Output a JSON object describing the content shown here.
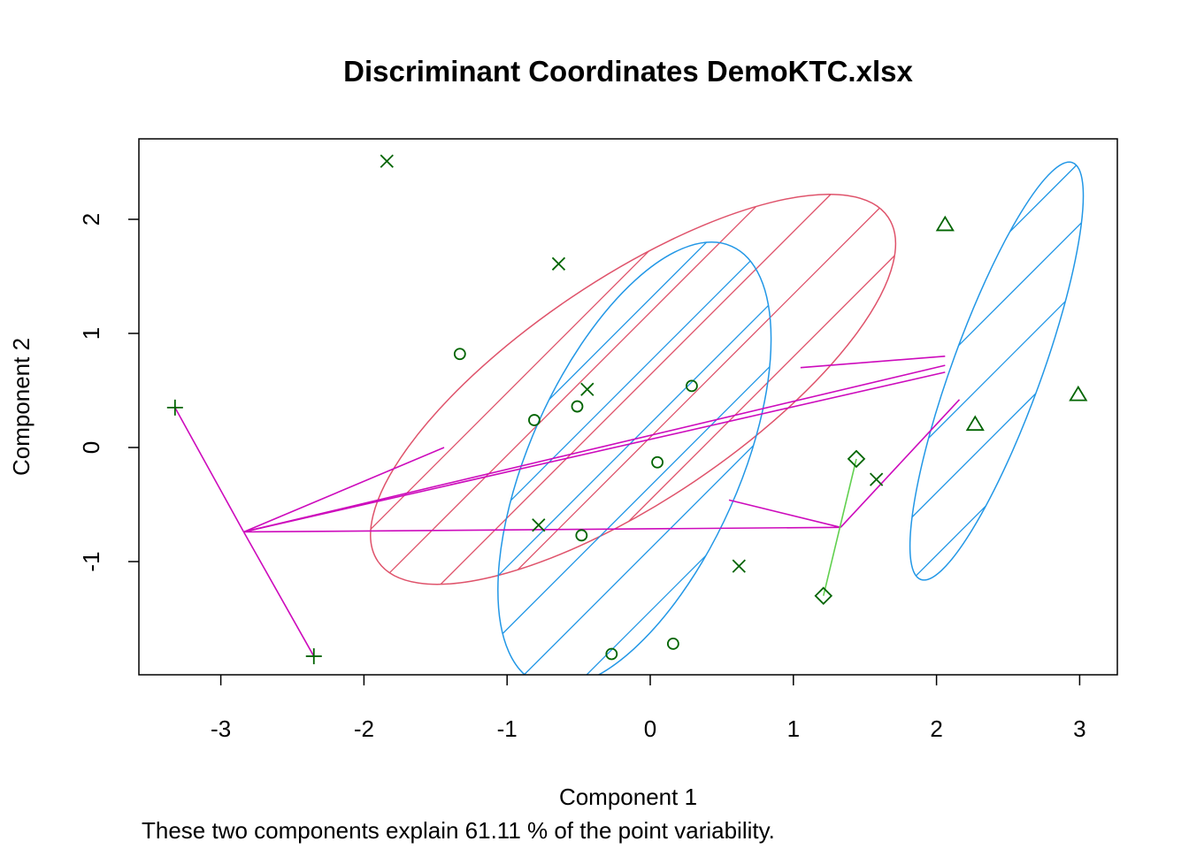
{
  "chart_data": {
    "type": "scatter",
    "title": "Discriminant Coordinates DemoKTC.xlsx",
    "xlabel": "Component 1",
    "ylabel": "Component 2",
    "note": "These two components explain 61.11 % of the point variability.",
    "xlim": [
      -3.6,
      3.3
    ],
    "ylim": [
      -2.0,
      2.7
    ],
    "x_ticks": [
      -3,
      -2,
      -1,
      0,
      1,
      2,
      3
    ],
    "y_ticks": [
      -1,
      0,
      1,
      2
    ],
    "grid": false,
    "colors": {
      "points": "#006400",
      "ellipse_red": "#DF536B",
      "ellipse_blue": "#2297E6",
      "lines_magenta": "#CD0BBC",
      "line_green": "#61D04F"
    },
    "points": [
      {
        "marker": "plus",
        "x": -3.32,
        "y": 0.35
      },
      {
        "marker": "plus",
        "x": -2.35,
        "y": -1.83
      },
      {
        "marker": "cross",
        "x": -1.84,
        "y": 2.51
      },
      {
        "marker": "cross",
        "x": -0.64,
        "y": 1.61
      },
      {
        "marker": "cross",
        "x": -0.44,
        "y": 0.51
      },
      {
        "marker": "cross",
        "x": -0.78,
        "y": -0.68
      },
      {
        "marker": "cross",
        "x": 0.62,
        "y": -1.04
      },
      {
        "marker": "cross",
        "x": 1.58,
        "y": -0.28
      },
      {
        "marker": "circle",
        "x": -1.33,
        "y": 0.82
      },
      {
        "marker": "circle",
        "x": -0.81,
        "y": 0.24
      },
      {
        "marker": "circle",
        "x": -0.51,
        "y": 0.36
      },
      {
        "marker": "circle",
        "x": 0.29,
        "y": 0.54
      },
      {
        "marker": "circle",
        "x": 0.05,
        "y": -0.13
      },
      {
        "marker": "circle",
        "x": -0.48,
        "y": -0.77
      },
      {
        "marker": "circle",
        "x": 0.16,
        "y": -1.72
      },
      {
        "marker": "circle",
        "x": -0.27,
        "y": -1.81
      },
      {
        "marker": "triangle",
        "x": 2.06,
        "y": 1.95
      },
      {
        "marker": "triangle",
        "x": 2.99,
        "y": 0.46
      },
      {
        "marker": "triangle",
        "x": 2.27,
        "y": 0.2
      },
      {
        "marker": "diamond",
        "x": 1.44,
        "y": -0.1
      },
      {
        "marker": "diamond",
        "x": 1.21,
        "y": -1.3
      }
    ],
    "ellipses": [
      {
        "group": "cross",
        "color": "red",
        "cx": -0.12,
        "cy": 0.51,
        "rx": 2.15,
        "ry": 0.97,
        "angle_deg": -34
      },
      {
        "group": "circle",
        "color": "blue",
        "cx": -0.11,
        "cy": -0.15,
        "rx": 1.67,
        "ry": 0.92,
        "angle_deg": -66
      },
      {
        "group": "triangle",
        "color": "blue",
        "cx": 2.42,
        "cy": 0.67,
        "rx": 1.55,
        "ry": 0.39,
        "angle_deg": -70
      }
    ],
    "segments": [
      {
        "color": "magenta",
        "x1": -2.84,
        "y1": -0.74,
        "x2": -3.32,
        "y2": 0.35
      },
      {
        "color": "magenta",
        "x1": -2.84,
        "y1": -0.74,
        "x2": -2.35,
        "y2": -1.83
      },
      {
        "color": "magenta",
        "x1": -2.84,
        "y1": -0.74,
        "x2": -1.44,
        "y2": 0.0
      },
      {
        "color": "magenta",
        "x1": -2.84,
        "y1": -0.74,
        "x2": 2.06,
        "y2": 0.72
      },
      {
        "color": "magenta",
        "x1": -2.84,
        "y1": -0.74,
        "x2": 2.06,
        "y2": 0.66
      },
      {
        "color": "magenta",
        "x1": -2.84,
        "y1": -0.74,
        "x2": 1.33,
        "y2": -0.7
      },
      {
        "color": "magenta",
        "x1": 1.05,
        "y1": 0.7,
        "x2": 2.06,
        "y2": 0.8
      },
      {
        "color": "magenta",
        "x1": 1.33,
        "y1": -0.7,
        "x2": 2.16,
        "y2": 0.42
      },
      {
        "color": "magenta",
        "x1": 1.33,
        "y1": -0.7,
        "x2": 0.55,
        "y2": -0.46
      },
      {
        "color": "green",
        "x1": 1.44,
        "y1": -0.1,
        "x2": 1.21,
        "y2": -1.3
      }
    ]
  }
}
